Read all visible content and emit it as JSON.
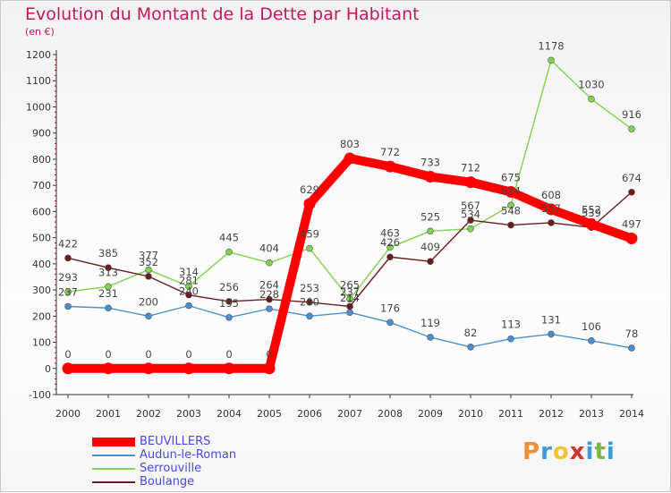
{
  "title": "Evolution du Montant de la Dette par Habitant",
  "subtitle": "(en €)",
  "logo": [
    "P",
    "r",
    "o",
    "x",
    "i",
    "t",
    "i"
  ],
  "logo_colors": [
    "#e8913a",
    "#3b9bd6",
    "#f4c430",
    "#d0342c",
    "#3b9bd6",
    "#7ab648",
    "#3b9bd6"
  ],
  "chart_data": {
    "type": "line",
    "x": [
      "2000",
      "2001",
      "2002",
      "2003",
      "2004",
      "2005",
      "2006",
      "2007",
      "2008",
      "2009",
      "2010",
      "2011",
      "2012",
      "2013",
      "2014"
    ],
    "ylim": [
      -100,
      1200
    ],
    "yticks": [
      -100,
      0,
      100,
      200,
      300,
      400,
      500,
      600,
      700,
      800,
      900,
      1000,
      1100,
      1200
    ],
    "grid": false,
    "legend_position": "bottom-left",
    "series": [
      {
        "name": "BEUVILLERS",
        "color": "#ff0000",
        "values": [
          0,
          0,
          0,
          0,
          0,
          0,
          629,
          803,
          772,
          733,
          712,
          675,
          608,
          552,
          497
        ]
      },
      {
        "name": "Audun-le-Roman",
        "color": "#4b8fd0",
        "values": [
          237,
          231,
          200,
          240,
          195,
          228,
          200,
          214,
          176,
          119,
          82,
          113,
          131,
          106,
          78
        ]
      },
      {
        "name": "Serrouville",
        "color": "#7fd34e",
        "values": [
          293,
          313,
          377,
          314,
          445,
          404,
          459,
          265,
          463,
          525,
          534,
          624,
          1178,
          1030,
          916
        ]
      },
      {
        "name": "Boulange",
        "color": "#6b1a1f",
        "values": [
          422,
          385,
          352,
          281,
          256,
          264,
          253,
          237,
          426,
          409,
          567,
          548,
          557,
          539,
          674
        ]
      }
    ]
  }
}
